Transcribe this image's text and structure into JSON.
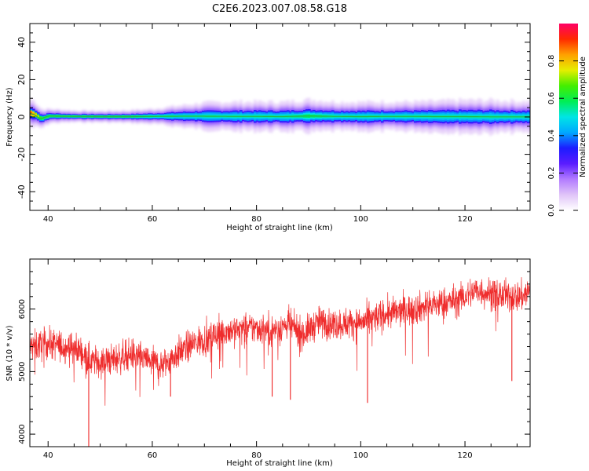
{
  "title": "C2E6.2023.007.08.58.G18",
  "colors": {
    "snr_line": "#ee2222",
    "ridge": "#22bb44",
    "colormap": [
      "#ffffff",
      "#e0c4f8",
      "#b27bff",
      "#5a1cff",
      "#1c1cff",
      "#00a8ff",
      "#00e5e5",
      "#00ee55",
      "#44ee00",
      "#e5ee00",
      "#ffa000",
      "#ff2a00",
      "#ff0066"
    ]
  },
  "chart_data": [
    {
      "type": "heatmap",
      "xlabel": "Height of straight line (km)",
      "ylabel": "Frequency (Hz)",
      "xlim": [
        36.5,
        132.5
      ],
      "ylim": [
        -50,
        50
      ],
      "xticks": [
        "40",
        "60",
        "80",
        "100",
        "120"
      ],
      "yticks": [
        "-40",
        "-20",
        "0",
        "20",
        "40"
      ],
      "colorbar": {
        "label": "Normalized spectral amplitude",
        "range": [
          0.0,
          1.0
        ],
        "ticks": [
          "0.0",
          "0.2",
          "0.4",
          "0.6",
          "0.8"
        ]
      },
      "ridge": {
        "x": [
          36.5,
          37.5,
          38.5,
          40,
          45,
          50,
          55,
          60,
          65,
          70,
          75,
          80,
          85,
          90,
          95,
          100,
          105,
          110,
          115,
          120,
          125,
          130,
          132.5
        ],
        "frequency": [
          2,
          1,
          -1,
          0.5,
          0.3,
          0.2,
          0.2,
          0.3,
          0.4,
          0.4,
          0.3,
          0.3,
          0.2,
          0.5,
          0.3,
          0.2,
          0.3,
          0.3,
          0.2,
          0.2,
          0.1,
          0.1,
          0.1
        ],
        "band_halfwidth": [
          3,
          2.5,
          2,
          1.5,
          1.2,
          1.2,
          1.3,
          1.6,
          2.2,
          2.8,
          3,
          3,
          3,
          3.4,
          3,
          3,
          3,
          3,
          3.2,
          3.4,
          3.4,
          3.2,
          3.2
        ],
        "amplitude": [
          0.8,
          0.7,
          0.55,
          0.55,
          0.55,
          0.55,
          0.55,
          0.5,
          0.45,
          0.45,
          0.45,
          0.45,
          0.45,
          0.5,
          0.45,
          0.45,
          0.45,
          0.45,
          0.45,
          0.45,
          0.45,
          0.45,
          0.45
        ]
      }
    },
    {
      "type": "line",
      "xlabel": "Height of straight line (km)",
      "ylabel": "SNR (10 * v/v)",
      "xlim": [
        36.5,
        132.5
      ],
      "ylim": [
        3800,
        6800
      ],
      "xticks": [
        "40",
        "60",
        "80",
        "100",
        "120"
      ],
      "yticks": [
        "4000",
        "5000",
        "6000"
      ],
      "series": [
        {
          "x": [
            37,
            40,
            43,
            46,
            48,
            50,
            53,
            56,
            59,
            62,
            65,
            68,
            71,
            74,
            77,
            80,
            83,
            86,
            89,
            92,
            95,
            98,
            101,
            104,
            107,
            110,
            113,
            116,
            119,
            122,
            125,
            128,
            131,
            132.5
          ],
          "values": [
            5400,
            5450,
            5400,
            5350,
            5180,
            5150,
            5200,
            5280,
            5180,
            5100,
            5300,
            5450,
            5550,
            5650,
            5680,
            5700,
            5650,
            5750,
            5600,
            5800,
            5750,
            5780,
            5800,
            5900,
            5950,
            6000,
            6050,
            6100,
            6150,
            6300,
            6250,
            6200,
            6200,
            6300
          ],
          "noise_spread": 330,
          "dropouts": [
            {
              "x": 47.8,
              "y": 3800
            },
            {
              "x": 63.5,
              "y": 4600
            },
            {
              "x": 83.0,
              "y": 4600
            },
            {
              "x": 86.5,
              "y": 4550
            },
            {
              "x": 101.3,
              "y": 4500
            },
            {
              "x": 129.0,
              "y": 4850
            }
          ]
        }
      ]
    }
  ]
}
